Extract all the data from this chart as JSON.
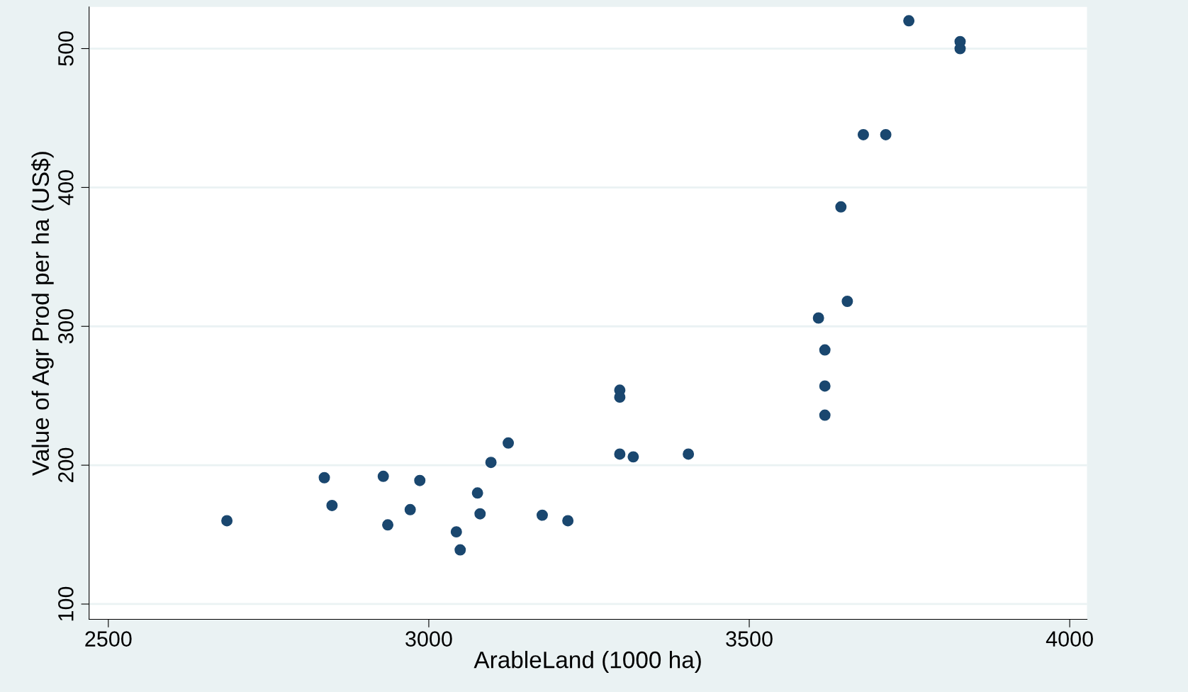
{
  "chart_data": {
    "type": "scatter",
    "xlabel": "ArableLand (1000 ha)",
    "ylabel": "Value of Agr Prod per ha (US$)",
    "x": [
      2685,
      2837,
      2849,
      2929,
      2936,
      2971,
      2986,
      3043,
      3049,
      3076,
      3080,
      3097,
      3124,
      3177,
      3217,
      3298,
      3298,
      3298,
      3319,
      3405,
      3608,
      3618,
      3618,
      3618,
      3643,
      3653,
      3678,
      3713,
      3749,
      3829,
      3829
    ],
    "series": [
      {
        "color": "#1a476f",
        "values": [
          160,
          191,
          171,
          192,
          157,
          168,
          189,
          152,
          139,
          180,
          165,
          202,
          216,
          164,
          160,
          254,
          249,
          208,
          206,
          208,
          306,
          283,
          257,
          236,
          386,
          318,
          438,
          438,
          520,
          505,
          500
        ]
      }
    ],
    "xlim": [
      2470,
      4027
    ],
    "ylim": [
      89,
      530
    ],
    "xticks": [
      2500,
      3000,
      3500,
      4000
    ],
    "yticks": [
      100,
      200,
      300,
      400,
      500
    ],
    "grid": "y",
    "marker": "circle",
    "legend": false
  }
}
